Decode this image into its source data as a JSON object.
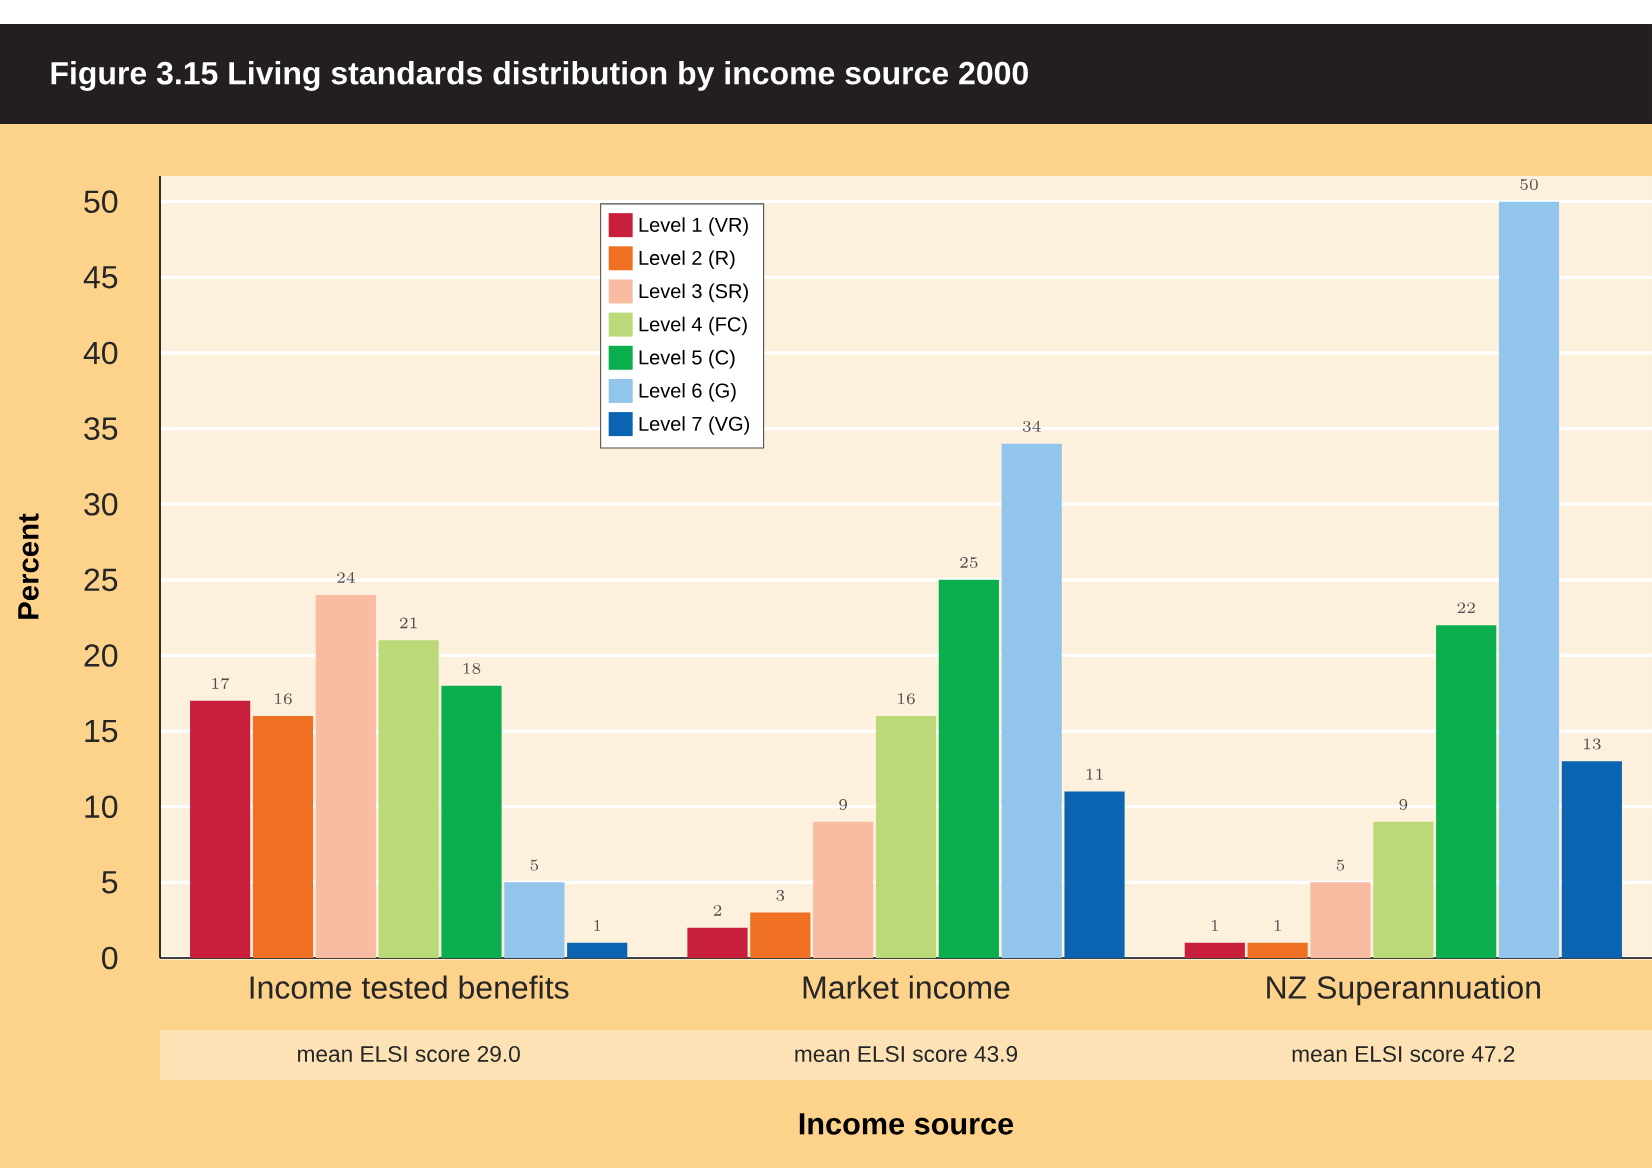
{
  "chart_data": {
    "type": "bar",
    "title": "Figure 3.15   Living standards distribution by income source 2000",
    "xlabel": "Income source",
    "ylabel": "Percent",
    "categories": [
      "Income tested benefits",
      "Market income",
      "NZ Superannuation"
    ],
    "series": [
      {
        "name": "Level 1 (VR)",
        "color": "#c8203c",
        "values": [
          17,
          2,
          1
        ]
      },
      {
        "name": "Level 2 (R)",
        "color": "#f07023",
        "values": [
          16,
          3,
          1
        ]
      },
      {
        "name": "Level 3 (SR)",
        "color": "#f9bba2",
        "values": [
          24,
          9,
          5
        ]
      },
      {
        "name": "Level 4 (FC)",
        "color": "#bcd97a",
        "values": [
          21,
          16,
          9
        ]
      },
      {
        "name": "Level 5 (C)",
        "color": "#0aae4c",
        "values": [
          18,
          25,
          22
        ]
      },
      {
        "name": "Level 6 (G)",
        "color": "#92c5ec",
        "values": [
          5,
          34,
          50
        ]
      },
      {
        "name": "Level 7 (VG)",
        "color": "#0a64b2",
        "values": [
          1,
          11,
          13
        ]
      }
    ],
    "ylim": [
      0,
      51.7
    ],
    "yticks": [
      0,
      5,
      10,
      15,
      20,
      25,
      30,
      35,
      40,
      45,
      50
    ],
    "grid": "y",
    "legend": "top left",
    "data_labels": true,
    "annotations": [
      "mean ELSI score 29.0",
      "mean ELSI score 43.9",
      "mean ELSI score 47.2"
    ]
  }
}
